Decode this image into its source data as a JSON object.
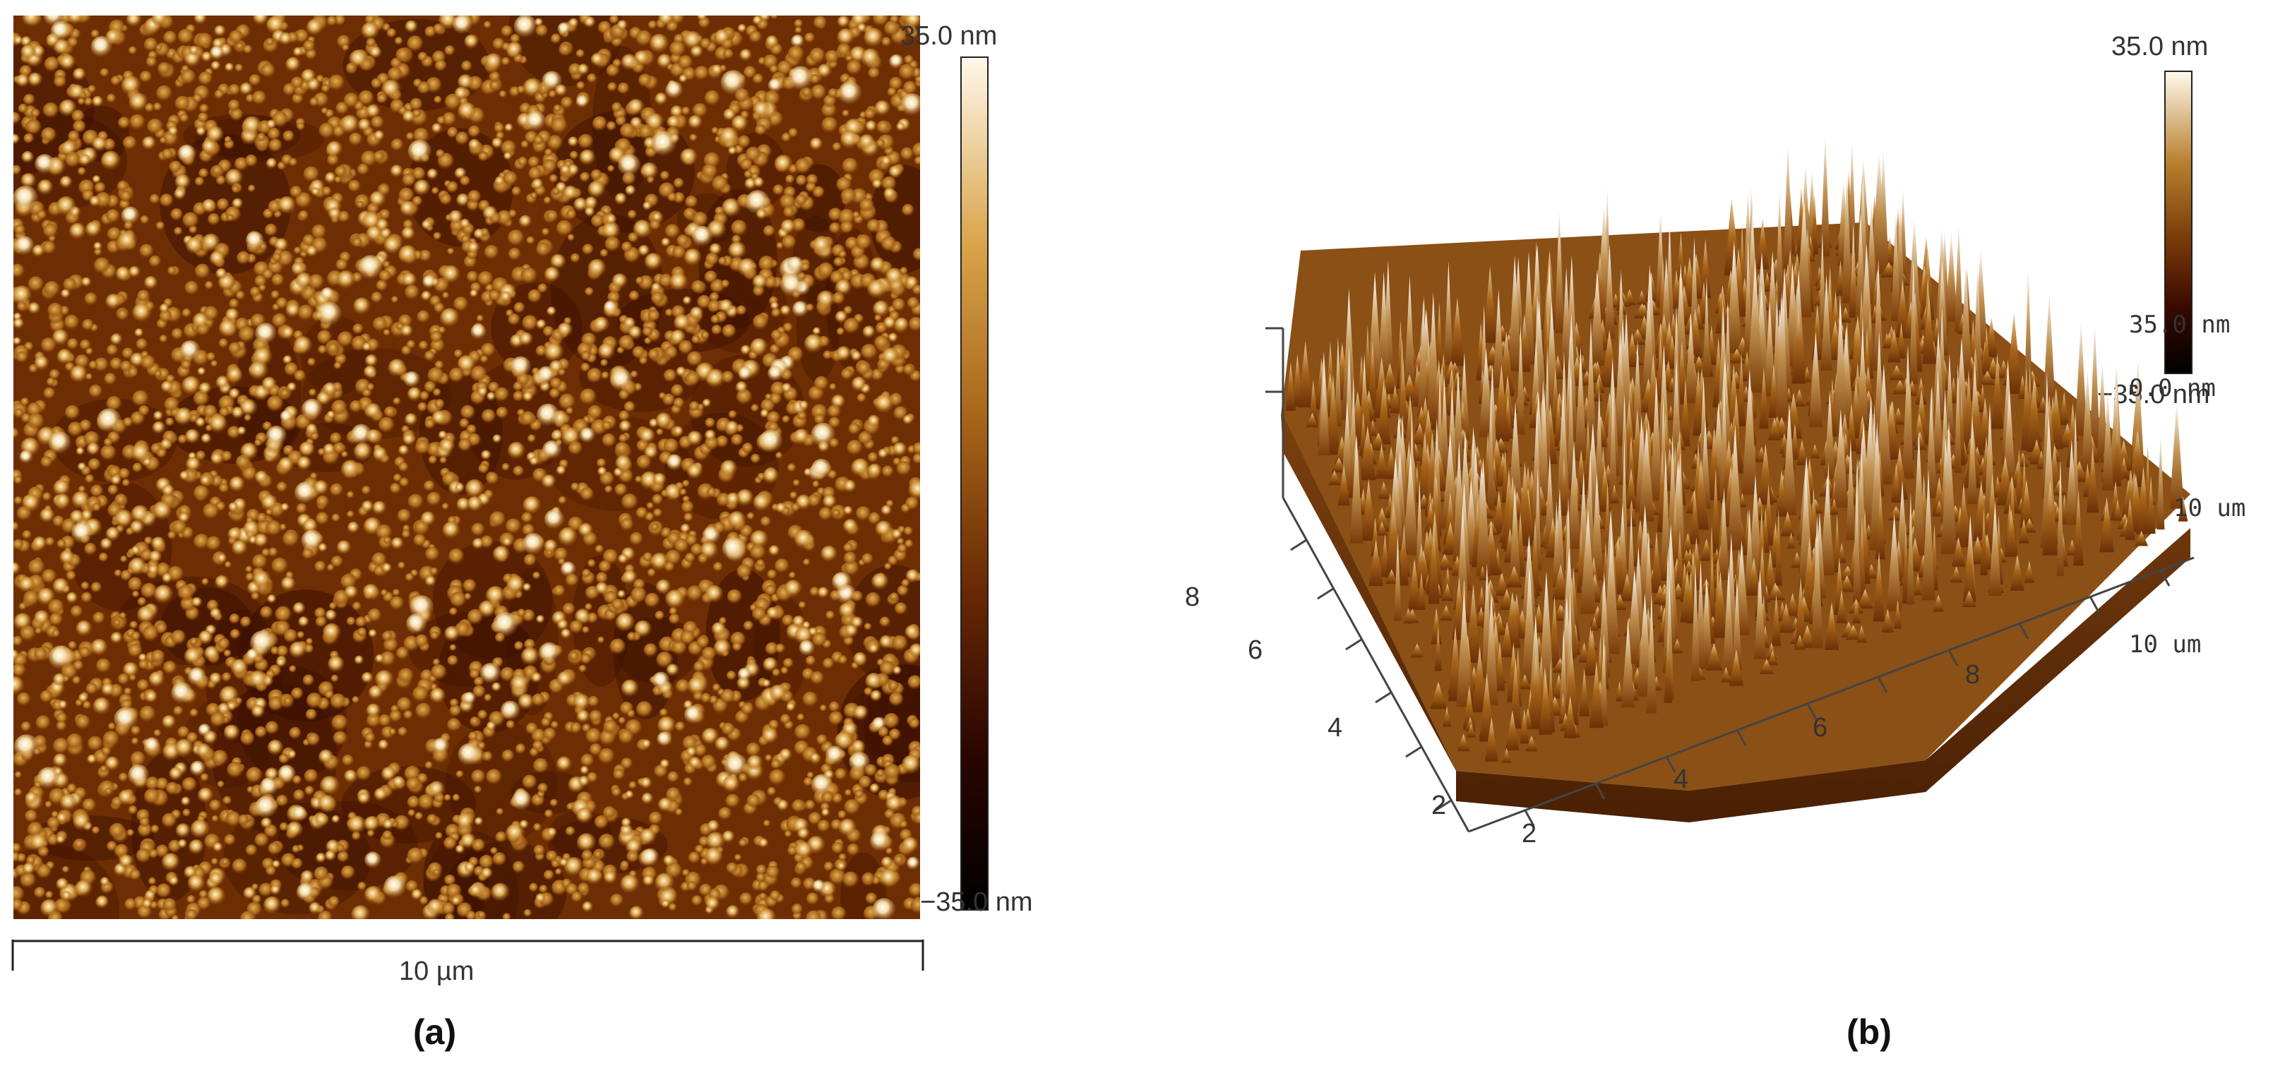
{
  "panel_a": {
    "label": "(a)",
    "scale_bar": "10 µm",
    "colorbar": {
      "max": "35.0 nm",
      "min": "−35.0 nm"
    }
  },
  "panel_b": {
    "label": "(b)",
    "colorbar": {
      "max": "35.0 nm",
      "min": "−35.0 nm"
    },
    "z_axis": {
      "top": "35.0 nm",
      "zero": "0.0 nm"
    },
    "y_axis": {
      "end": "10 um",
      "ticks": [
        "8",
        "6",
        "4",
        "2"
      ]
    },
    "x_axis": {
      "end": "10 um",
      "ticks": [
        "2",
        "4",
        "6",
        "8"
      ]
    }
  },
  "colormap": {
    "dark": "#2a0500",
    "mid": "#8a4a08",
    "bright": "#c08a2a",
    "light": "#fff8ea"
  }
}
